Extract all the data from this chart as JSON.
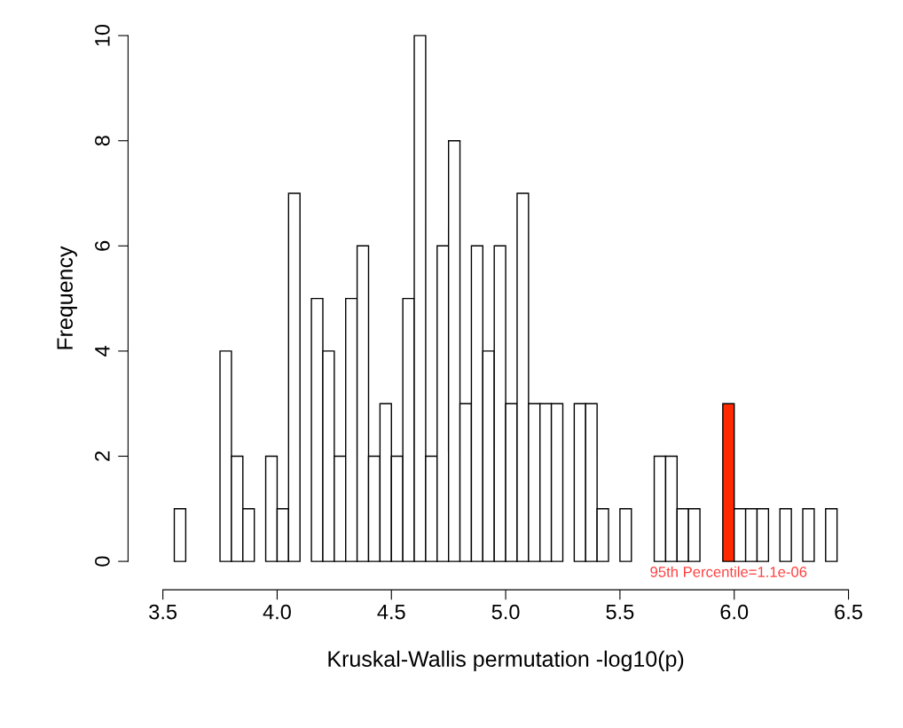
{
  "chart_data": {
    "type": "histogram",
    "xlabel": "Kruskal-Wallis permutation -log10(p)",
    "ylabel": "Frequency",
    "bins": [
      3.55,
      3.6,
      3.65,
      3.7,
      3.75,
      3.8,
      3.85,
      3.9,
      3.95,
      4.0,
      4.05,
      4.1,
      4.15,
      4.2,
      4.25,
      4.3,
      4.35,
      4.4,
      4.45,
      4.5,
      4.55,
      4.6,
      4.65,
      4.7,
      4.75,
      4.8,
      4.85,
      4.9,
      4.95,
      5.0,
      5.05,
      5.1,
      5.15,
      5.2,
      5.25,
      5.3,
      5.35,
      5.4,
      5.45,
      5.5,
      5.55,
      5.6,
      5.65,
      5.7,
      5.75,
      5.8,
      5.85,
      5.9,
      5.95,
      6.0,
      6.05,
      6.1,
      6.15,
      6.2,
      6.25,
      6.3,
      6.35,
      6.4,
      6.45
    ],
    "values": [
      1,
      0,
      0,
      0,
      4,
      2,
      1,
      0,
      2,
      1,
      7,
      0,
      5,
      4,
      2,
      5,
      6,
      2,
      3,
      2,
      5,
      10,
      2,
      6,
      8,
      3,
      6,
      4,
      6,
      3,
      7,
      3,
      3,
      3,
      0,
      3,
      3,
      1,
      0,
      1,
      0,
      0,
      2,
      2,
      1,
      1,
      0,
      0,
      3,
      1,
      1,
      1,
      0,
      1,
      0,
      1,
      0,
      1
    ],
    "colors": [
      "#ffffff",
      "#ffffff",
      "#ffffff",
      "#ffffff",
      "#ffffff",
      "#ffffff",
      "#ffffff",
      "#ffffff",
      "#ffffff",
      "#ffffff",
      "#ffffff",
      "#ffffff",
      "#ffffff",
      "#ffffff",
      "#ffffff",
      "#ffffff",
      "#ffffff",
      "#ffffff",
      "#ffffff",
      "#ffffff",
      "#ffffff",
      "#ffffff",
      "#ffffff",
      "#ffffff",
      "#ffffff",
      "#ffffff",
      "#ffffff",
      "#ffffff",
      "#ffffff",
      "#ffffff",
      "#ffffff",
      "#ffffff",
      "#ffffff",
      "#ffffff",
      "#ffffff",
      "#ffffff",
      "#ffffff",
      "#ffffff",
      "#ffffff",
      "#ffffff",
      "#ffffff",
      "#ffffff",
      "#ffffff",
      "#ffffff",
      "#ffffff",
      "#ffffff",
      "#ffffff",
      "#ffffff",
      "#ff2a00",
      "#ffffff",
      "#ffffff",
      "#ffffff",
      "#ffffff",
      "#ffffff",
      "#ffffff",
      "#ffffff",
      "#ffffff",
      "#ffffff"
    ],
    "xlim": [
      3.5,
      6.5
    ],
    "xticks": [
      3.5,
      {
        "value": 4,
        "label": "4.0"
      },
      4.5,
      {
        "value": 5,
        "label": "5.0"
      },
      5.5,
      {
        "value": 6,
        "label": "6.0"
      },
      6.5
    ],
    "ylim": [
      0,
      10
    ],
    "yticks": [
      0,
      2,
      4,
      6,
      8,
      10
    ],
    "annotations": [
      {
        "text": "95th Percentile=1.1e-06",
        "x": 5.975,
        "y": 0
      }
    ],
    "grid": false
  }
}
